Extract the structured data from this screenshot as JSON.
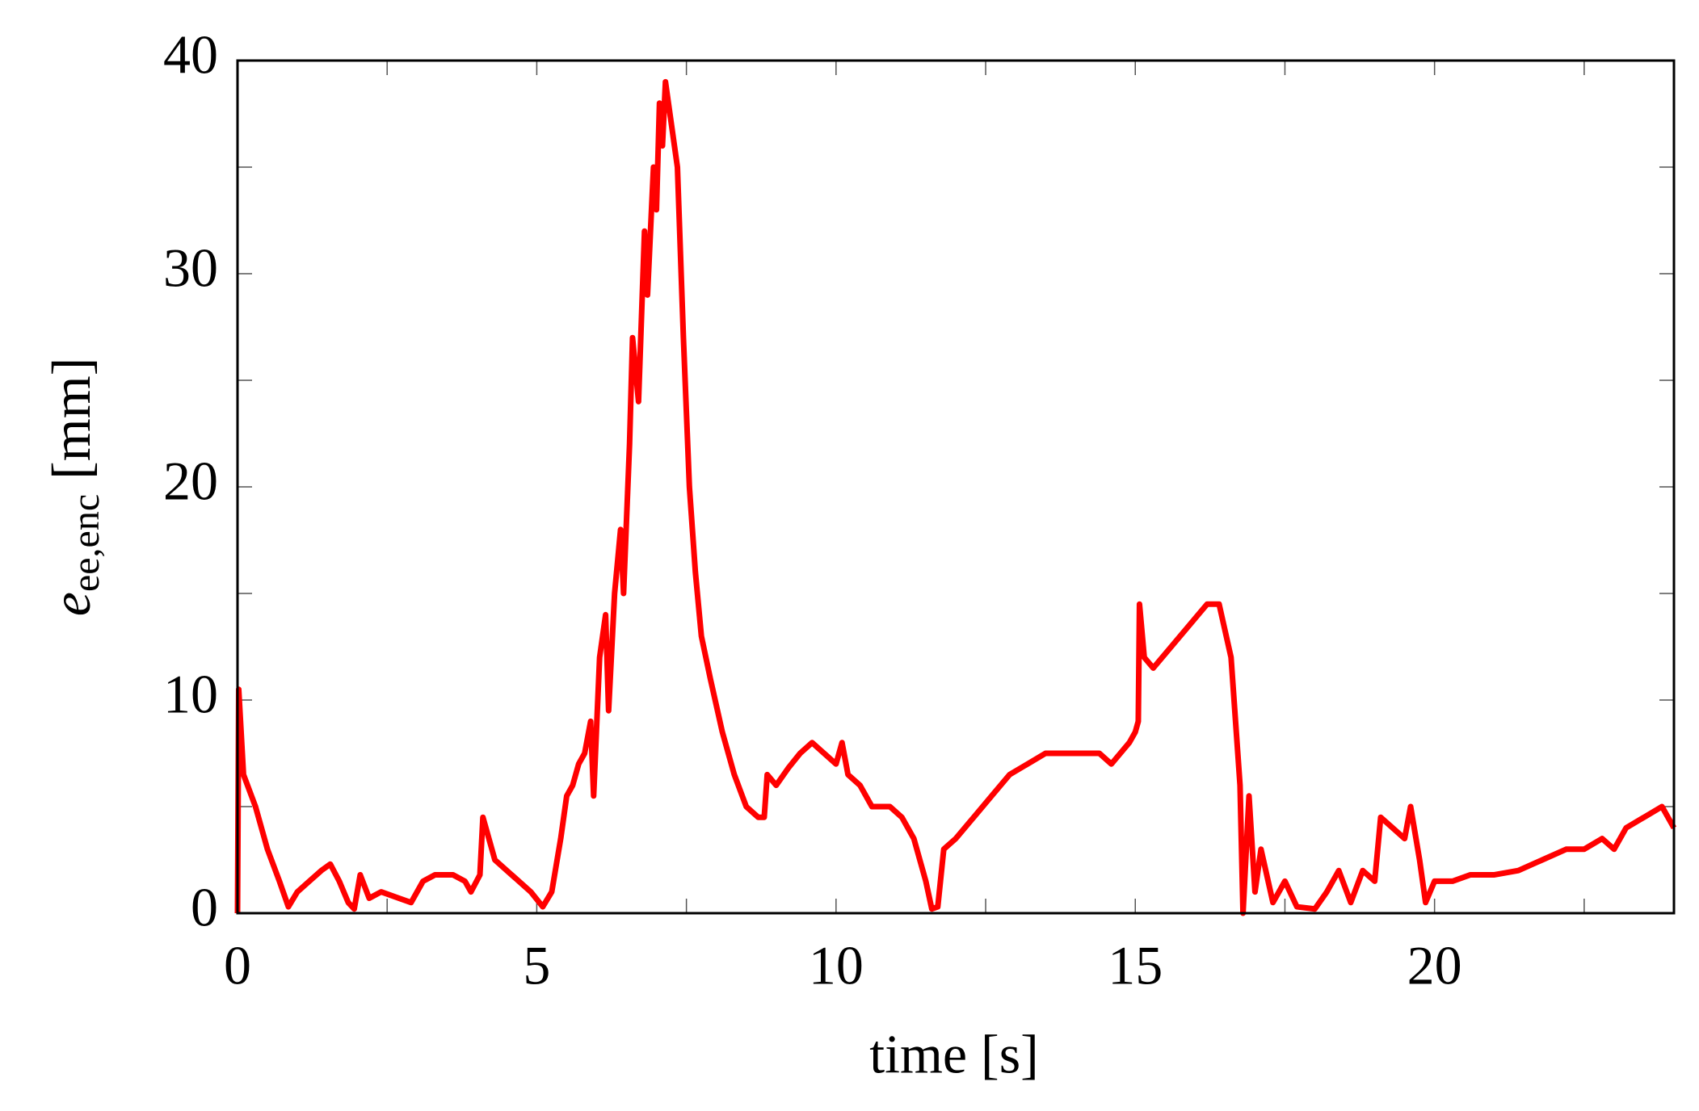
{
  "chart_data": {
    "type": "line",
    "xlabel": "time [s]",
    "ylabel": {
      "symbol": "e",
      "subscript": "ee,enc",
      "unit": "[mm]"
    },
    "xlim": [
      0,
      24
    ],
    "ylim": [
      0,
      40
    ],
    "xticks": [
      0,
      5,
      10,
      15,
      20
    ],
    "yticks": [
      0,
      10,
      20,
      30,
      40
    ],
    "minor_xticks": [
      2.5,
      7.5,
      12.5,
      17.5,
      22.5
    ],
    "minor_yticks": [
      5,
      15,
      25,
      35
    ],
    "series": [
      {
        "color": "#ff0000",
        "x": [
          0,
          0.02,
          0.1,
          0.3,
          0.5,
          0.7,
          0.85,
          1.0,
          1.2,
          1.4,
          1.55,
          1.7,
          1.85,
          1.95,
          2.05,
          2.2,
          2.4,
          2.7,
          2.9,
          3.1,
          3.3,
          3.6,
          3.8,
          3.9,
          4.05,
          4.1,
          4.3,
          4.5,
          4.7,
          4.9,
          5.1,
          5.25,
          5.4,
          5.5,
          5.6,
          5.7,
          5.8,
          5.9,
          5.95,
          6.05,
          6.15,
          6.2,
          6.3,
          6.4,
          6.45,
          6.55,
          6.6,
          6.7,
          6.8,
          6.85,
          6.95,
          7.0,
          7.05,
          7.1,
          7.15,
          7.25,
          7.35,
          7.45,
          7.55,
          7.65,
          7.75,
          7.9,
          8.1,
          8.3,
          8.5,
          8.7,
          8.8,
          8.85,
          9.0,
          9.2,
          9.4,
          9.6,
          9.8,
          10.0,
          10.1,
          10.2,
          10.4,
          10.6,
          10.9,
          11.1,
          11.3,
          11.5,
          11.6,
          11.7,
          11.8,
          12.0,
          12.3,
          12.6,
          12.9,
          13.2,
          13.5,
          13.8,
          14.1,
          14.4,
          14.6,
          14.9,
          15.0,
          15.05,
          15.07,
          15.15,
          15.3,
          15.6,
          15.9,
          16.2,
          16.4,
          16.6,
          16.75,
          16.8,
          16.9,
          17.0,
          17.1,
          17.3,
          17.5,
          17.7,
          18.0,
          18.2,
          18.4,
          18.6,
          18.8,
          19.0,
          19.1,
          19.3,
          19.5,
          19.6,
          19.75,
          19.85,
          20.0,
          20.3,
          20.6,
          21.0,
          21.4,
          21.8,
          22.2,
          22.5,
          22.8,
          23.0,
          23.2,
          23.5,
          23.8,
          24.0
        ],
        "values": [
          0,
          10.5,
          6.5,
          5,
          3,
          1.5,
          0.3,
          1,
          1.5,
          2,
          2.3,
          1.5,
          0.5,
          0.2,
          1.8,
          0.7,
          1,
          0.7,
          0.5,
          1.5,
          1.8,
          1.8,
          1.5,
          1,
          1.8,
          4.5,
          2.5,
          2,
          1.5,
          1,
          0.3,
          1,
          3.5,
          5.5,
          6,
          7,
          7.5,
          9,
          5.5,
          12,
          14,
          9.5,
          15,
          18,
          15,
          22,
          27,
          24,
          32,
          29,
          35,
          33,
          38,
          36,
          39,
          37,
          35,
          27,
          20,
          16,
          13,
          11,
          8.5,
          6.5,
          5,
          4.5,
          4.5,
          6.5,
          6,
          6.8,
          7.5,
          8,
          7.5,
          7,
          8,
          6.5,
          6,
          5,
          5,
          4.5,
          3.5,
          1.5,
          0.2,
          0.3,
          3,
          3.5,
          4.5,
          5.5,
          6.5,
          7,
          7.5,
          7.5,
          7.5,
          7.5,
          7,
          8,
          8.5,
          9,
          14.5,
          12,
          11.5,
          12.5,
          13.5,
          14.5,
          14.5,
          12,
          6,
          0,
          5.5,
          1,
          3,
          0.5,
          1.5,
          0.3,
          0.2,
          1,
          2,
          0.5,
          2,
          1.5,
          4.5,
          4,
          3.5,
          5,
          2.5,
          0.5,
          1.5,
          1.5,
          1.8,
          1.8,
          2,
          2.5,
          3,
          3,
          3.5,
          3,
          4,
          4.5,
          5,
          4
        ]
      }
    ]
  }
}
